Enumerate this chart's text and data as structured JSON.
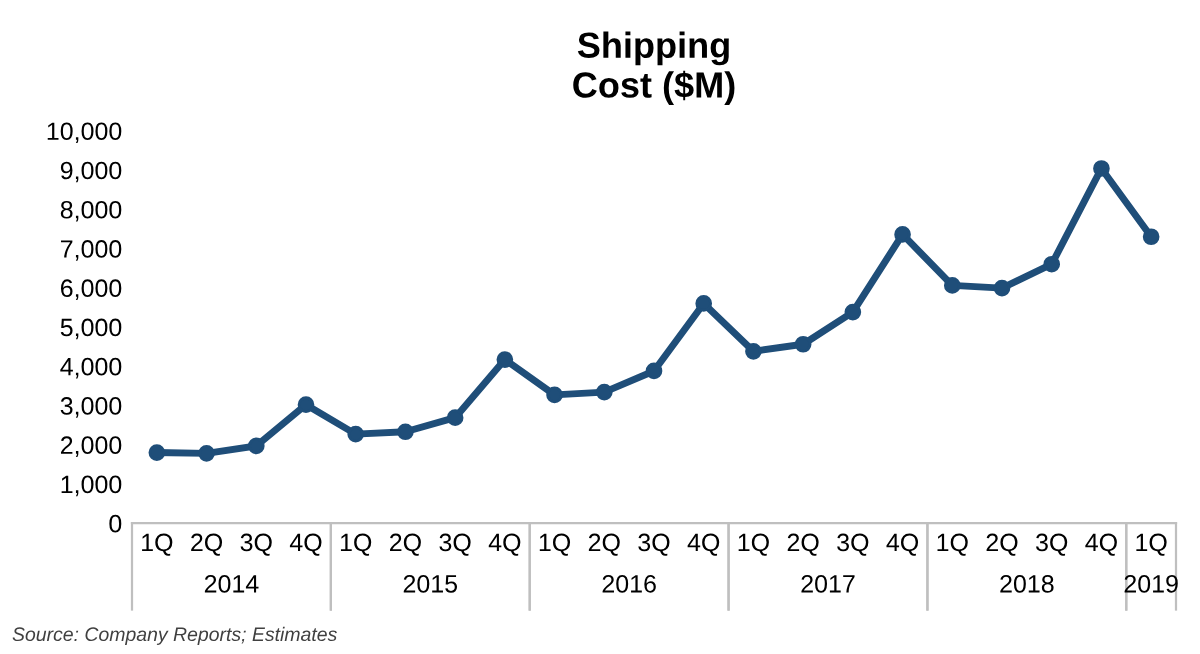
{
  "chart_data": {
    "type": "line",
    "title": "Shipping\nCost ($M)",
    "categories": [
      "1Q",
      "2Q",
      "3Q",
      "4Q",
      "1Q",
      "2Q",
      "3Q",
      "4Q",
      "1Q",
      "2Q",
      "3Q",
      "4Q",
      "1Q",
      "2Q",
      "3Q",
      "4Q",
      "1Q",
      "2Q",
      "3Q",
      "4Q",
      "1Q"
    ],
    "series": [
      {
        "color": "#1f4e79",
        "values": [
          1800,
          1780,
          1970,
          3020,
          2270,
          2330,
          2690,
          4170,
          3270,
          3340,
          3880,
          5600,
          4380,
          4560,
          5380,
          7360,
          6060,
          5990,
          6600,
          9040,
          7300
        ]
      }
    ],
    "ylim": [
      0,
      10000
    ],
    "yticks": [
      {
        "value": 0,
        "label": "0"
      },
      {
        "value": 1000,
        "label": "1,000"
      },
      {
        "value": 2000,
        "label": "2,000"
      },
      {
        "value": 3000,
        "label": "3,000"
      },
      {
        "value": 4000,
        "label": "4,000"
      },
      {
        "value": 5000,
        "label": "5,000"
      },
      {
        "value": 6000,
        "label": "6,000"
      },
      {
        "value": 7000,
        "label": "7,000"
      },
      {
        "value": 8000,
        "label": "8,000"
      },
      {
        "value": 9000,
        "label": "9,000"
      },
      {
        "value": 10000,
        "label": "10,000"
      }
    ],
    "marker": "circle",
    "line_style": "solid",
    "grid": false,
    "legend": false,
    "annotations": [
      "2014",
      "2015",
      "2016",
      "2017",
      "2018",
      "2019",
      "Source: Company Reports; Estimates"
    ]
  }
}
